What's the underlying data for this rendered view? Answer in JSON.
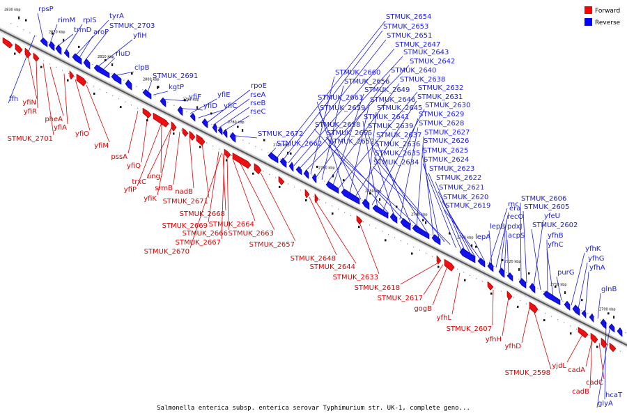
{
  "caption": "Salmonella enterica subsp. enterica serovar Typhimurium str. UK-1, complete geno...",
  "legend": [
    {
      "label": "Forward",
      "color": "#ff0000"
    },
    {
      "label": "Reverse",
      "color": "#0000ff"
    }
  ],
  "kbp_marks": [
    "2830 kbp",
    "2820 kbp",
    "2810 kbp",
    "2800 kbp",
    "2790 kbp",
    "2780 kbp",
    "2770 kbp",
    "2760 kbp",
    "2750 kbp",
    "2740 kbp",
    "2730 kbp",
    "2720 kbp",
    "2710 kbp",
    "2700 kbp"
  ],
  "reverse_labels": [
    "rpsP",
    "rimM",
    "trmD",
    "rplS",
    "tyrA",
    "aroF",
    "STMUK_2703",
    "yfiH",
    "rluD",
    "ffh",
    "clpB",
    "STMUK_2691",
    "kgtP",
    "yfiF",
    "yfiD",
    "yfiE",
    "yfiC",
    "rpoE",
    "rseA",
    "rseB",
    "rseC",
    "STMUK_2672",
    "STMUK_2662",
    "STMUK_2654",
    "STMUK_2653",
    "STMUK_2651",
    "STMUK_2647",
    "STMUK_2643",
    "STMUK_2642",
    "STMUK_2660",
    "STMUK_2640",
    "STMUK_2656",
    "STMUK_2638",
    "STMUK_2649",
    "STMUK_2632",
    "STMUK_2661",
    "STMUK_2646",
    "STMUK_2631",
    "STMUK_2659",
    "STMUK_2645",
    "STMUK_2630",
    "STMUK_2641",
    "STMUK_2629",
    "STMUK_2658",
    "STMUK_2639",
    "STMUK_2628",
    "STMUK_2655",
    "STMUK_2637",
    "STMUK_2627",
    "STMUK_2652",
    "STMUK_2636",
    "STMUK_2626",
    "STMUK_2625",
    "STMUK_2635",
    "STMUK_2634",
    "STMUK_2624",
    "STMUK_2623",
    "STMUK_2622",
    "STMUK_2621",
    "STMUK_2620",
    "STMUK_2619",
    "rnc",
    "era",
    "recO",
    "pdxJ",
    "acpS",
    "lepB",
    "lepA",
    "STMUK_2606",
    "STMUK_2605",
    "yfeU",
    "STMUK_2602",
    "yfhB",
    "yfhC",
    "yfhK",
    "yfhG",
    "yfhA",
    "purG",
    "glnB",
    "hcaT",
    "glyA"
  ],
  "forward_labels": [
    "yfiN",
    "yfiR",
    "pheA",
    "yfiA",
    "yfiO",
    "STMUK_2701",
    "yfiM",
    "pssA",
    "yfiQ",
    "ung",
    "trxC",
    "yfiP",
    "srmB",
    "yfiK",
    "nadB",
    "STMUK_2671",
    "STMUK_2668",
    "STMUK_2669",
    "STMUK_2664",
    "STMUK_2666",
    "STMUK_2663",
    "STMUK_2667",
    "STMUK_2670",
    "STMUK_2657",
    "STMUK_2648",
    "STMUK_2644",
    "STMUK_2633",
    "STMUK_2618",
    "STMUK_2617",
    "gogB",
    "yfhL",
    "STMUK_2607",
    "yfhH",
    "yfhD",
    "STMUK_2598",
    "yjdL",
    "cadA",
    "cadC",
    "cadB"
  ]
}
